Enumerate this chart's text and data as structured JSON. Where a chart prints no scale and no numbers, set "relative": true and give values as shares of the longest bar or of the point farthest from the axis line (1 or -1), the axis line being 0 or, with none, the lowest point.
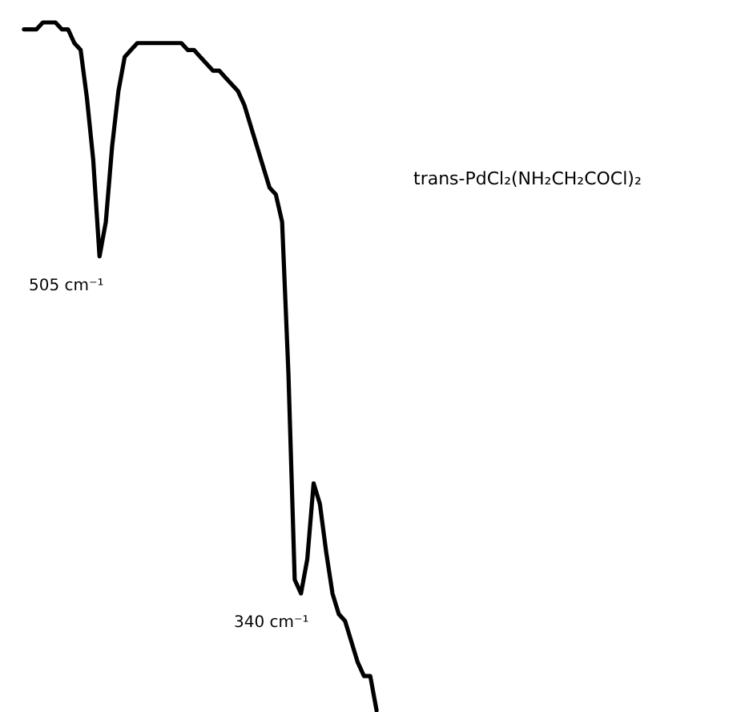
{
  "chart_data": {
    "type": "line",
    "relative": true,
    "title": "trans-PdCl₂(NH₂CH₂COCl)₂",
    "categories": [
      null,
      null,
      null,
      null,
      null,
      null,
      null,
      null,
      null,
      null,
      null,
      null,
      null,
      null,
      null,
      null,
      null,
      null,
      null,
      null,
      null,
      null,
      null,
      null,
      null,
      null,
      null,
      null,
      null,
      null,
      null,
      null,
      null,
      null,
      null,
      null,
      null,
      null,
      null,
      null,
      null,
      null,
      null,
      null,
      null,
      null,
      null,
      null,
      null,
      null,
      null,
      null,
      null,
      null,
      null,
      null,
      null
    ],
    "series": [
      {
        "color": "#000000",
        "values": [
          0.99,
          0.99,
          0.99,
          1.0,
          1.0,
          1,
          0.99,
          0.99,
          0.97,
          0.96,
          0.89,
          0.8,
          0.66,
          0.71,
          0.82,
          0.9,
          0.95,
          0.96,
          0.97,
          0.97,
          0.97,
          0.97,
          0.97,
          0.97,
          0.97,
          0.97,
          0.96,
          0.96,
          0.95,
          0.94,
          0.93,
          0.93,
          0.92,
          0.91,
          0.9,
          0.88,
          0.85,
          0.82,
          0.79,
          0.76,
          0.75,
          0.71,
          0.49,
          0.19,
          0.17,
          0.22,
          0.33,
          0.3,
          0.23,
          0.17,
          0.14,
          0.13,
          0.1,
          0.07,
          0.05,
          0.05,
          0
        ]
      }
    ],
    "annotations": [
      "505 cm⁻¹",
      "340 cm⁻¹"
    ]
  }
}
